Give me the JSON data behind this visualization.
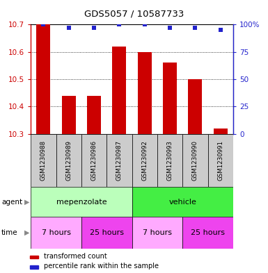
{
  "title": "GDS5057 / 10587733",
  "samples": [
    "GSM1230988",
    "GSM1230989",
    "GSM1230986",
    "GSM1230987",
    "GSM1230992",
    "GSM1230993",
    "GSM1230990",
    "GSM1230991"
  ],
  "transformed_counts": [
    10.7,
    10.44,
    10.44,
    10.62,
    10.6,
    10.56,
    10.5,
    10.32
  ],
  "percentile_ranks": [
    100,
    97,
    97,
    100,
    100,
    97,
    97,
    95
  ],
  "ymin": 10.3,
  "ymax": 10.7,
  "yticks": [
    10.3,
    10.4,
    10.5,
    10.6,
    10.7
  ],
  "right_yticks": [
    0,
    25,
    50,
    75,
    100
  ],
  "bar_color": "#cc0000",
  "dot_color": "#2222cc",
  "agent_labels": [
    {
      "label": "mepenzolate",
      "start": 0,
      "end": 4,
      "color": "#bbffbb"
    },
    {
      "label": "vehicle",
      "start": 4,
      "end": 8,
      "color": "#44ee44"
    }
  ],
  "time_labels": [
    {
      "label": "7 hours",
      "start": 0,
      "end": 2,
      "color": "#ffaaff"
    },
    {
      "label": "25 hours",
      "start": 2,
      "end": 4,
      "color": "#ee44ee"
    },
    {
      "label": "7 hours",
      "start": 4,
      "end": 6,
      "color": "#ffaaff"
    },
    {
      "label": "25 hours",
      "start": 6,
      "end": 8,
      "color": "#ee44ee"
    }
  ],
  "left_axis_color": "#cc0000",
  "right_axis_color": "#2222cc",
  "legend_red_label": "transformed count",
  "legend_blue_label": "percentile rank within the sample",
  "bar_width": 0.55,
  "sample_bg": "#cccccc",
  "chart_border_color": "#000000"
}
